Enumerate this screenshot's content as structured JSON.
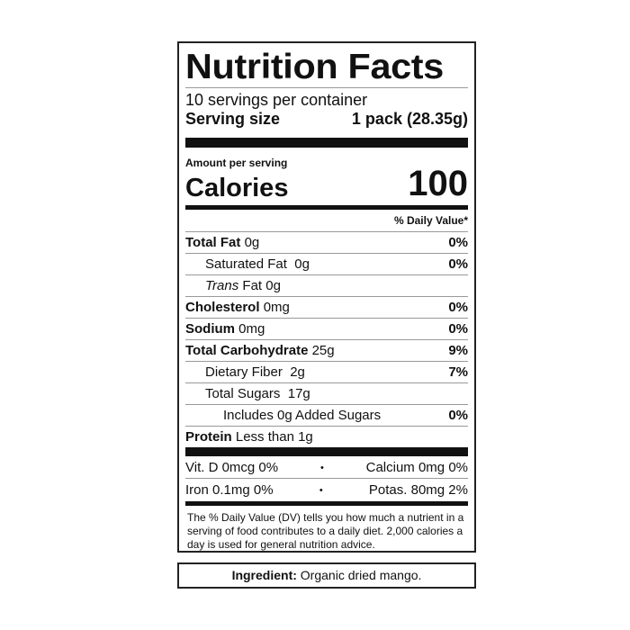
{
  "title": "Nutrition Facts",
  "servings_per_container": "10 servings per container",
  "serving_size_label": "Serving size",
  "serving_size_value": "1 pack (28.35g)",
  "amount_per_serving": "Amount per serving",
  "calories_label": "Calories",
  "calories_value": "100",
  "daily_value_header": "% Daily Value*",
  "nutrients": [
    {
      "name": "Total Fat",
      "amount": "0g",
      "dv": "0%"
    },
    {
      "name": "Saturated Fat",
      "amount": "0g",
      "dv": "0%"
    },
    {
      "name": "Trans",
      "name_rest": "Fat",
      "amount": "0g",
      "dv": ""
    },
    {
      "name": "Cholesterol",
      "amount": "0mg",
      "dv": "0%"
    },
    {
      "name": "Sodium",
      "amount": "0mg",
      "dv": "0%"
    },
    {
      "name": "Total Carbohydrate",
      "amount": "25g",
      "dv": "9%"
    },
    {
      "name": "Dietary Fiber",
      "amount": "2g",
      "dv": "7%"
    },
    {
      "name": "Total Sugars",
      "amount": "17g",
      "dv": ""
    },
    {
      "name": "Includes 0g Added Sugars",
      "amount": "",
      "dv": "0%"
    },
    {
      "name": "Protein",
      "amount": "Less than 1g",
      "dv": ""
    }
  ],
  "vitamins": [
    {
      "left": "Vit. D 0mcg 0%",
      "right": "Calcium 0mg 0%"
    },
    {
      "left": "Iron 0.1mg 0%",
      "right": "Potas. 80mg 2%"
    }
  ],
  "separator": "•",
  "footnote": "The % Daily Value (DV) tells you how much a nutrient in a serving of food contributes to a daily diet. 2,000 calories a day is used for general nutrition advice.",
  "ingredient_label": "Ingredient:",
  "ingredient_text": "Organic dried mango."
}
